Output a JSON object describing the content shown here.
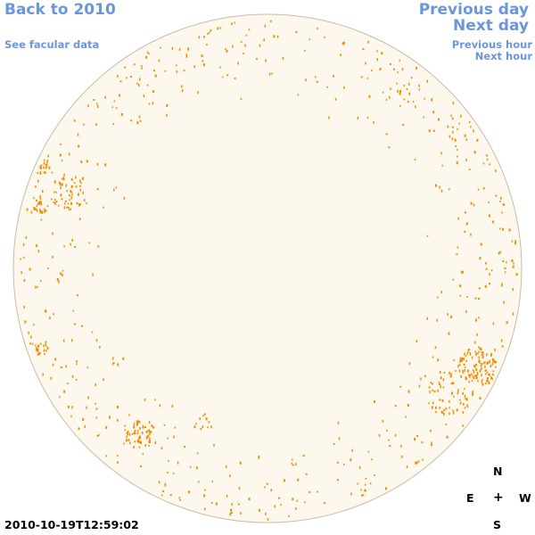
{
  "nav": {
    "back_label": "Back to 2010",
    "facular_label": "See facular data",
    "prev_day_label": "Previous day",
    "next_day_label": "Next day",
    "prev_hour_label": "Previous hour",
    "next_hour_label": "Next hour"
  },
  "compass": {
    "north": "N",
    "east": "E",
    "center": "+",
    "west": "W",
    "south": "S"
  },
  "timestamp": "2010-10-19T12:59:02",
  "colors": {
    "link": "#6a96dc",
    "disk_fill": "#fdf8ee",
    "disk_stroke": "#c9bca5",
    "facula": "#f28c00"
  }
}
